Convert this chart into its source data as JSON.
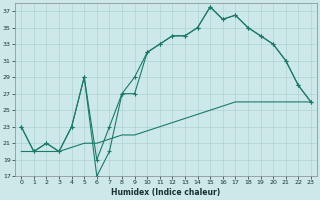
{
  "xlabel": "Humidex (Indice chaleur)",
  "background_color": "#cce8e8",
  "line_color": "#1a7a6a",
  "grid_color": "#b8d8d8",
  "xlim": [
    -0.5,
    23.5
  ],
  "ylim": [
    17,
    38
  ],
  "yticks": [
    17,
    19,
    21,
    23,
    25,
    27,
    29,
    31,
    33,
    35,
    37
  ],
  "xticks": [
    0,
    1,
    2,
    3,
    4,
    5,
    6,
    7,
    8,
    9,
    10,
    11,
    12,
    13,
    14,
    15,
    16,
    17,
    18,
    19,
    20,
    21,
    22,
    23
  ],
  "line1_x": [
    0,
    1,
    2,
    3,
    4,
    5,
    6,
    7,
    8,
    9,
    10,
    11,
    12,
    13,
    14,
    15,
    16,
    17,
    18,
    19,
    20,
    21,
    22,
    23
  ],
  "line1_y": [
    23,
    20,
    21,
    20,
    23,
    29,
    17,
    20,
    27,
    29,
    32,
    33,
    34,
    34,
    35,
    37.5,
    36,
    36.5,
    35,
    34,
    33,
    31,
    28,
    26
  ],
  "line2_x": [
    0,
    1,
    2,
    3,
    4,
    5,
    6,
    7,
    8,
    9,
    10,
    11,
    12,
    13,
    14,
    15,
    16,
    17,
    18,
    19,
    20,
    21,
    22,
    23
  ],
  "line2_y": [
    23,
    20,
    21,
    20,
    23,
    29,
    19,
    23,
    27,
    27,
    32,
    33,
    34,
    34,
    35,
    37.5,
    36,
    36.5,
    35,
    34,
    33,
    31,
    28,
    26
  ],
  "line3_x": [
    0,
    1,
    2,
    3,
    4,
    5,
    6,
    7,
    8,
    9,
    10,
    11,
    12,
    13,
    14,
    15,
    16,
    17,
    18,
    19,
    20,
    21,
    22,
    23
  ],
  "line3_y": [
    20,
    20,
    20,
    20,
    20.5,
    21,
    21,
    21.5,
    22,
    22,
    22.5,
    23,
    23.5,
    24,
    24.5,
    25,
    25.5,
    26,
    26,
    26,
    26,
    26,
    26,
    26
  ]
}
